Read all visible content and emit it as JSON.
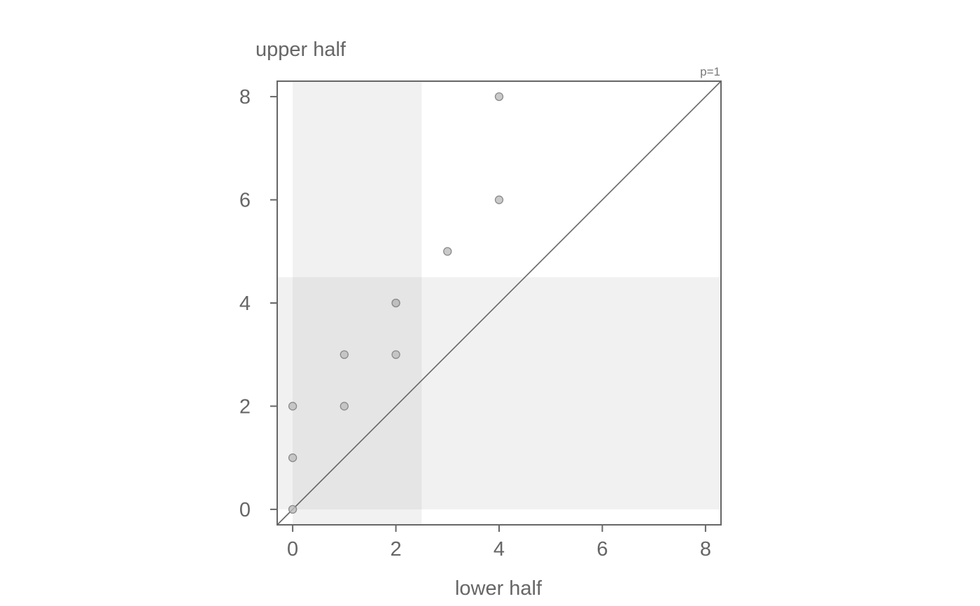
{
  "chart_data": {
    "type": "scatter",
    "title": "",
    "xlabel": "lower half",
    "ylabel": "upper half",
    "annotation": "p=1",
    "xlim": [
      -0.3,
      8.3
    ],
    "ylim": [
      -0.3,
      8.3
    ],
    "xticks": [
      0,
      2,
      4,
      6,
      8
    ],
    "yticks": [
      0,
      2,
      4,
      6,
      8
    ],
    "grid": false,
    "reference_line": "identity (y = x)",
    "shaded_bands": [
      {
        "name": "lower-half-band",
        "axis": "x",
        "range": [
          0,
          2.5
        ]
      },
      {
        "name": "upper-half-band",
        "axis": "y",
        "range": [
          0,
          4.5
        ]
      }
    ],
    "points": [
      {
        "x": 0,
        "y": 0
      },
      {
        "x": 0,
        "y": 1
      },
      {
        "x": 0,
        "y": 2
      },
      {
        "x": 1,
        "y": 2
      },
      {
        "x": 1,
        "y": 3
      },
      {
        "x": 2,
        "y": 3
      },
      {
        "x": 2,
        "y": 4
      },
      {
        "x": 2,
        "y": 4
      },
      {
        "x": 3,
        "y": 5
      },
      {
        "x": 4,
        "y": 6
      },
      {
        "x": 4,
        "y": 8
      }
    ],
    "colors": {
      "axis": "#666666",
      "band": "#f1f1f1",
      "band_overlap": "#e5e5e5",
      "point_fill": "#bdbdbd",
      "point_stroke": "#8a8a8a",
      "diagonal": "#666666"
    }
  }
}
